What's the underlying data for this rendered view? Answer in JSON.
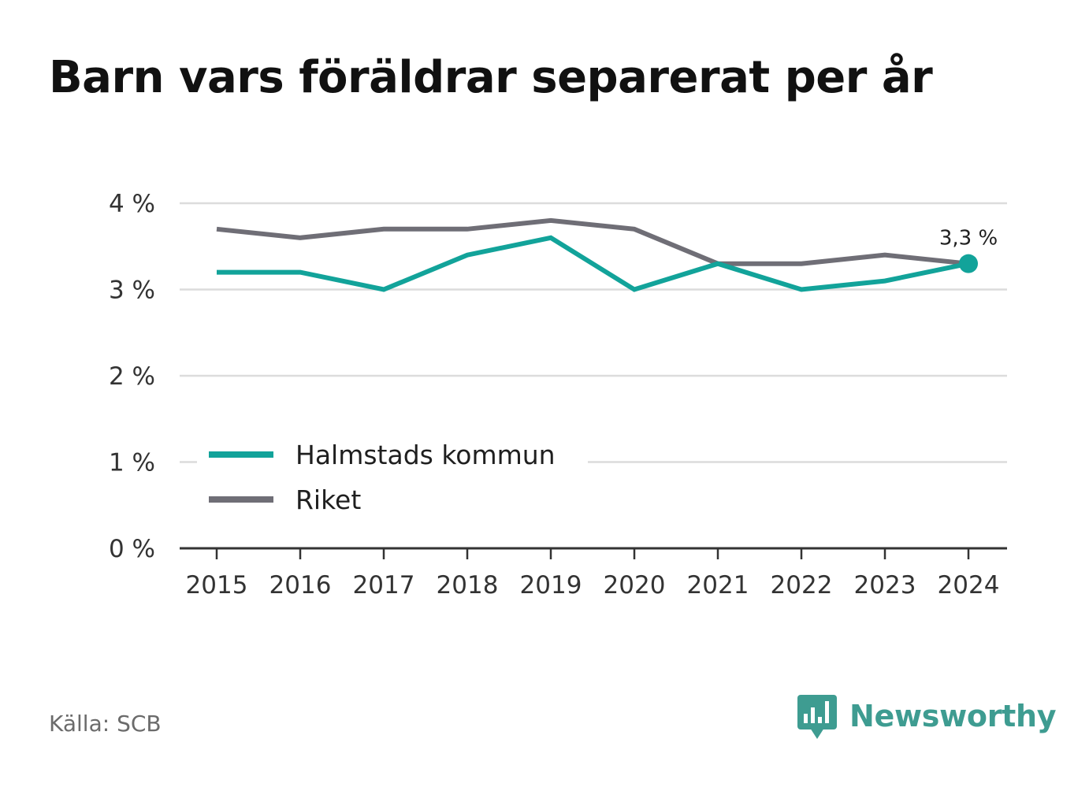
{
  "chart_data": {
    "type": "line",
    "title": "Barn vars föräldrar separerat per år",
    "x": [
      "2015",
      "2016",
      "2017",
      "2018",
      "2019",
      "2020",
      "2021",
      "2022",
      "2023",
      "2024"
    ],
    "series": [
      {
        "name": "Halmstads kommun",
        "color": "#12a39a",
        "values": [
          3.2,
          3.2,
          3.0,
          3.4,
          3.6,
          3.0,
          3.3,
          3.0,
          3.1,
          3.3
        ]
      },
      {
        "name": "Riket",
        "color": "#6f6e76",
        "values": [
          3.7,
          3.6,
          3.7,
          3.7,
          3.8,
          3.7,
          3.3,
          3.3,
          3.4,
          3.3
        ]
      }
    ],
    "ylim": [
      0,
      4
    ],
    "yticks": [
      0,
      1,
      2,
      3,
      4
    ],
    "ytick_labels": [
      "0 %",
      "1 %",
      "2 %",
      "3 %",
      "4 %"
    ],
    "grid": true,
    "legend_position": "bottom-left",
    "end_label": "3,3 %",
    "xlabel": "",
    "ylabel": ""
  },
  "footer": {
    "source": "Källa: SCB",
    "brand": "Newsworthy",
    "brand_icon": "bar-chart-speech-bubble-icon",
    "brand_color": "#3e9c91"
  }
}
